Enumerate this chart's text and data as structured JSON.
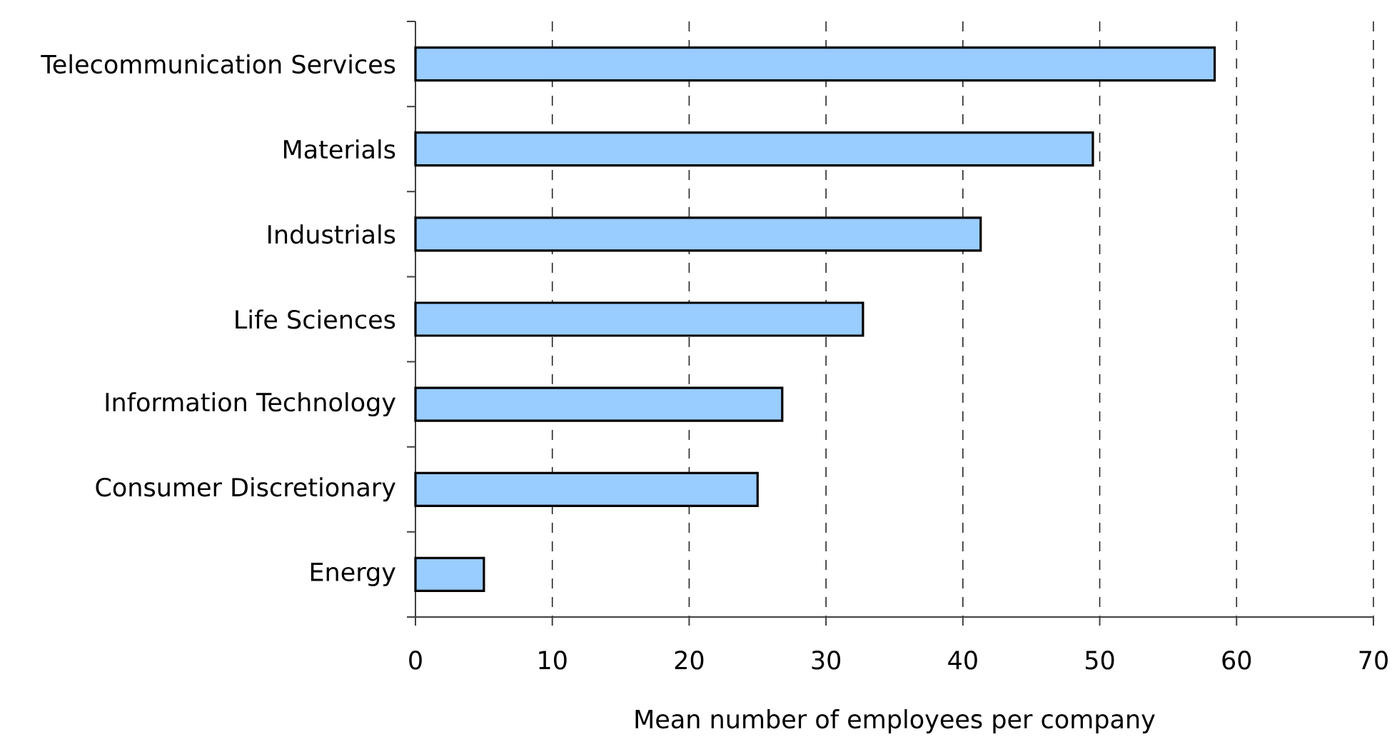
{
  "chart_data": {
    "type": "bar",
    "orientation": "horizontal",
    "categories": [
      "Telecommunication Services",
      "Materials",
      "Industrials",
      "Life Sciences",
      "Information Technology",
      "Consumer Discretionary",
      "Energy"
    ],
    "values": [
      58.4,
      49.5,
      41.3,
      32.7,
      26.8,
      25.0,
      5.0
    ],
    "color": "#99ccff",
    "xlabel": "Mean number of employees per company",
    "xlim": [
      0,
      70
    ],
    "xticks": [
      0,
      10,
      20,
      30,
      40,
      50,
      60,
      70
    ],
    "grid": "x"
  }
}
